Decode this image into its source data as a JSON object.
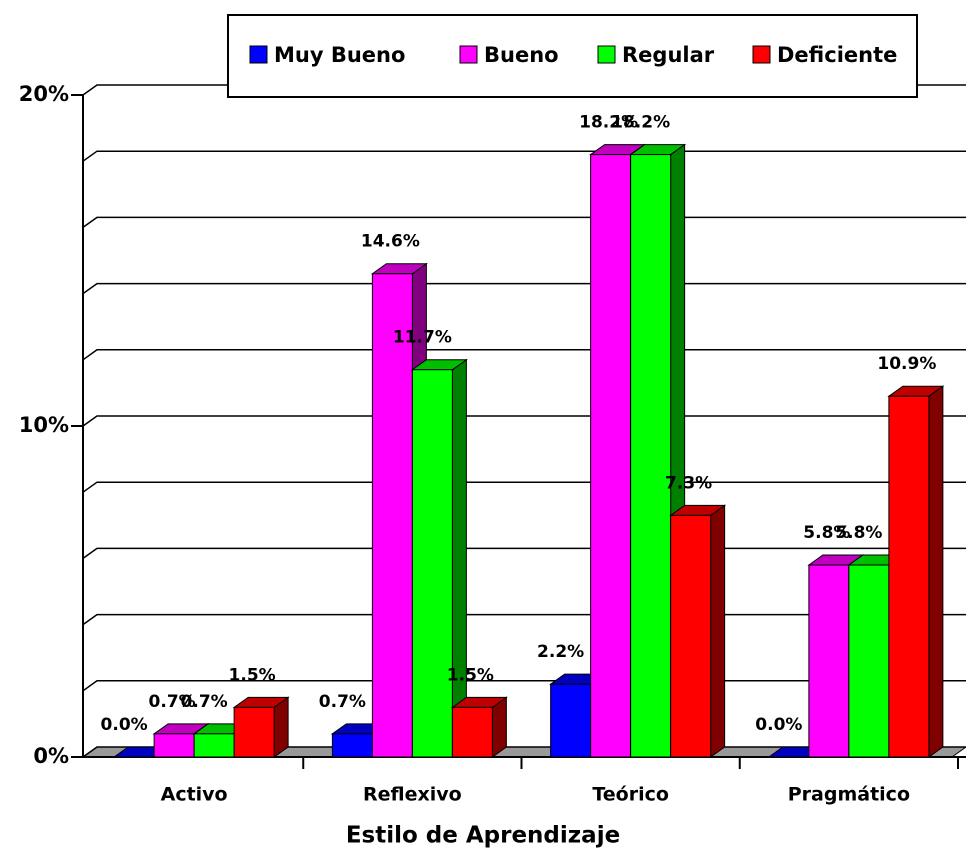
{
  "chart_data": {
    "type": "bar3d",
    "x_label": "Estilo de Aprendizaje",
    "categories": [
      "Activo",
      "Reflexivo",
      "Teórico",
      "Pragmático"
    ],
    "series": [
      {
        "name": "Muy Bueno",
        "color": "#0000ff",
        "values": [
          0.0,
          0.7,
          2.2,
          0.0
        ],
        "value_labels": [
          "0.0%",
          "0.7%",
          "2.2%",
          "0.0%"
        ]
      },
      {
        "name": "Bueno",
        "color": "#ff00ff",
        "values": [
          0.7,
          14.6,
          18.2,
          5.8
        ],
        "value_labels": [
          "0.7%",
          "14.6%",
          "18.2%",
          "5.8%"
        ]
      },
      {
        "name": "Regular",
        "color": "#00ff00",
        "values": [
          0.7,
          11.7,
          18.2,
          5.8
        ],
        "value_labels": [
          "0.7%",
          "11.7%",
          "18.2%",
          "5.8%"
        ]
      },
      {
        "name": "Deficiente",
        "color": "#ff0000",
        "values": [
          1.5,
          1.5,
          7.3,
          10.9
        ],
        "value_labels": [
          "1.5%",
          "1.5%",
          "7.3%",
          "10.9%"
        ]
      }
    ],
    "ylim": [
      0,
      20
    ],
    "yticks": [
      {
        "value": 0,
        "label": "0%"
      },
      {
        "value": 10,
        "label": "10%"
      },
      {
        "value": 20,
        "label": "20%"
      }
    ],
    "minor_yticks": [
      2,
      4,
      6,
      8,
      12,
      14,
      16,
      18
    ],
    "grid": true,
    "legend": "top"
  }
}
